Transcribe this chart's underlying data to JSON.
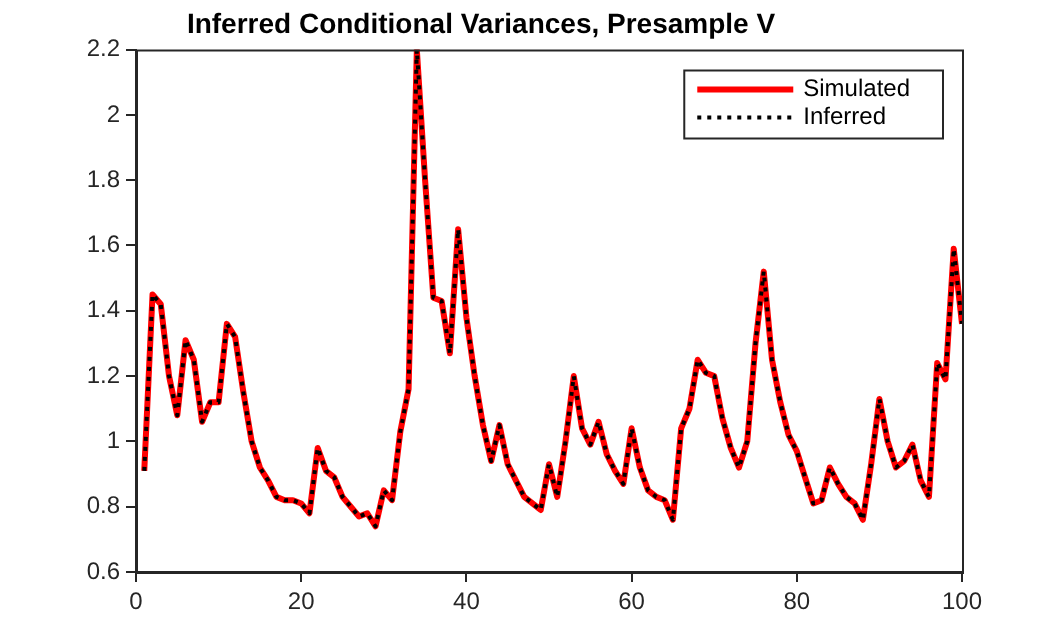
{
  "chart_data": {
    "type": "line",
    "title": "Inferred Conditional Variances, Presample V",
    "x": [
      1,
      2,
      3,
      4,
      5,
      6,
      7,
      8,
      9,
      10,
      11,
      12,
      13,
      14,
      15,
      16,
      17,
      18,
      19,
      20,
      21,
      22,
      23,
      24,
      25,
      26,
      27,
      28,
      29,
      30,
      31,
      32,
      33,
      34,
      35,
      36,
      37,
      38,
      39,
      40,
      41,
      42,
      43,
      44,
      45,
      46,
      47,
      48,
      49,
      50,
      51,
      52,
      53,
      54,
      55,
      56,
      57,
      58,
      59,
      60,
      61,
      62,
      63,
      64,
      65,
      66,
      67,
      68,
      69,
      70,
      71,
      72,
      73,
      74,
      75,
      76,
      77,
      78,
      79,
      80,
      81,
      82,
      83,
      84,
      85,
      86,
      87,
      88,
      89,
      90,
      91,
      92,
      93,
      94,
      95,
      96,
      97,
      98,
      99,
      100
    ],
    "series": [
      {
        "name": "Simulated",
        "color": "#ff0000",
        "line_style": "solid",
        "values": [
          0.91,
          1.45,
          1.42,
          1.2,
          1.08,
          1.31,
          1.25,
          1.06,
          1.12,
          1.12,
          1.36,
          1.32,
          1.15,
          1.0,
          0.92,
          0.88,
          0.83,
          0.82,
          0.82,
          0.81,
          0.78,
          0.98,
          0.91,
          0.89,
          0.83,
          0.8,
          0.77,
          0.78,
          0.74,
          0.85,
          0.82,
          1.03,
          1.16,
          2.2,
          1.8,
          1.44,
          1.43,
          1.27,
          1.65,
          1.38,
          1.2,
          1.05,
          0.94,
          1.05,
          0.93,
          0.88,
          0.83,
          0.81,
          0.79,
          0.93,
          0.83,
          1.0,
          1.2,
          1.04,
          0.99,
          1.06,
          0.96,
          0.91,
          0.87,
          1.04,
          0.92,
          0.85,
          0.83,
          0.82,
          0.76,
          1.04,
          1.1,
          1.25,
          1.21,
          1.2,
          1.07,
          0.98,
          0.92,
          1.0,
          1.3,
          1.52,
          1.25,
          1.12,
          1.02,
          0.97,
          0.89,
          0.81,
          0.82,
          0.92,
          0.87,
          0.83,
          0.81,
          0.76,
          0.93,
          1.13,
          1.0,
          0.92,
          0.94,
          0.99,
          0.88,
          0.83,
          1.24,
          1.19,
          1.59,
          1.36
        ]
      },
      {
        "name": "Inferred",
        "color": "#000000",
        "line_style": "dotted",
        "values": [
          0.91,
          1.45,
          1.42,
          1.2,
          1.08,
          1.31,
          1.25,
          1.06,
          1.12,
          1.12,
          1.36,
          1.32,
          1.15,
          1.0,
          0.92,
          0.88,
          0.83,
          0.82,
          0.82,
          0.81,
          0.78,
          0.98,
          0.91,
          0.89,
          0.83,
          0.8,
          0.77,
          0.78,
          0.74,
          0.85,
          0.82,
          1.03,
          1.16,
          2.2,
          1.8,
          1.44,
          1.43,
          1.27,
          1.65,
          1.38,
          1.2,
          1.05,
          0.94,
          1.05,
          0.93,
          0.88,
          0.83,
          0.81,
          0.79,
          0.93,
          0.83,
          1.0,
          1.2,
          1.04,
          0.99,
          1.06,
          0.96,
          0.91,
          0.87,
          1.04,
          0.92,
          0.85,
          0.83,
          0.82,
          0.76,
          1.04,
          1.1,
          1.25,
          1.21,
          1.2,
          1.07,
          0.98,
          0.92,
          1.0,
          1.3,
          1.52,
          1.25,
          1.12,
          1.02,
          0.97,
          0.89,
          0.81,
          0.82,
          0.92,
          0.87,
          0.83,
          0.81,
          0.76,
          0.93,
          1.13,
          1.0,
          0.92,
          0.94,
          0.99,
          0.88,
          0.83,
          1.24,
          1.19,
          1.59,
          1.36
        ]
      }
    ],
    "xlim": [
      0,
      100
    ],
    "xticks": [
      0,
      20,
      40,
      60,
      80,
      100
    ],
    "ylim": [
      0.6,
      2.2
    ],
    "yticks": [
      0.6,
      0.8,
      1,
      1.2,
      1.4,
      1.6,
      1.8,
      2,
      2.2
    ],
    "legend": "top right",
    "marker": "none"
  }
}
